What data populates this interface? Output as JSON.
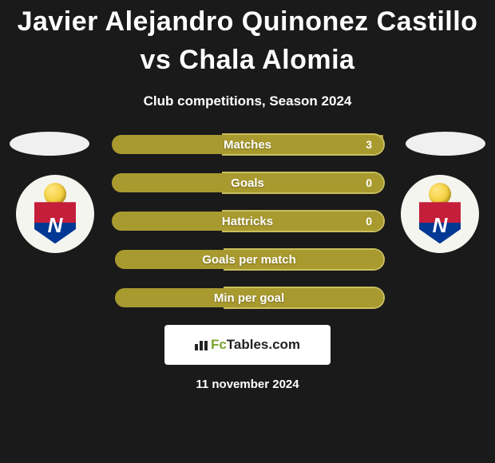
{
  "title": "Javier Alejandro Quinonez Castillo vs Chala Alomia",
  "subtitle": "Club competitions, Season 2024",
  "date": "11 november 2024",
  "colors": {
    "background": "#1a1a1a",
    "bar_fill": "#a99a2f",
    "bar_border": "#cbbf5e",
    "text": "#ffffff",
    "brand_accent": "#7aa52c"
  },
  "stats": [
    {
      "label": "Matches",
      "value": "3"
    },
    {
      "label": "Goals",
      "value": "0"
    },
    {
      "label": "Hattricks",
      "value": "0"
    },
    {
      "label": "Goals per match",
      "value": ""
    },
    {
      "label": "Min per goal",
      "value": ""
    }
  ],
  "brand": {
    "name_prefix": "Fc",
    "name_suffix": "Tables.com"
  },
  "players": {
    "left": {
      "club_letter": "N"
    },
    "right": {
      "club_letter": "N"
    }
  }
}
